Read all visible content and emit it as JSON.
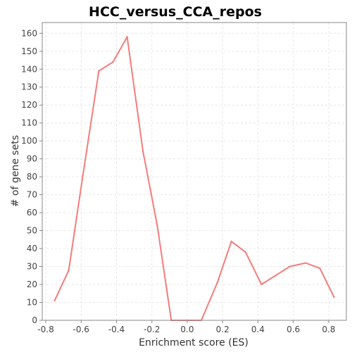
{
  "chart_data": {
    "type": "line",
    "title": "HCC_versus_CCA_repos",
    "xlabel": "Enrichment score (ES)",
    "ylabel": "# of gene sets",
    "xlim": [
      -0.82,
      0.9
    ],
    "ylim": [
      0,
      166
    ],
    "xticks": [
      -0.8,
      -0.6,
      -0.4,
      -0.2,
      0.0,
      0.2,
      0.4,
      0.6,
      0.8
    ],
    "xtick_labels": [
      "-0.8",
      "-0.6",
      "-0.4",
      "-0.2",
      "0.0",
      "0.2",
      "0.4",
      "0.6",
      "0.8"
    ],
    "yticks": [
      0,
      10,
      20,
      30,
      40,
      50,
      60,
      70,
      80,
      90,
      100,
      110,
      120,
      130,
      140,
      150,
      160
    ],
    "ytick_labels": [
      "0",
      "10",
      "20",
      "30",
      "40",
      "50",
      "60",
      "70",
      "80",
      "90",
      "100",
      "110",
      "120",
      "130",
      "140",
      "150",
      "160"
    ],
    "grid": true,
    "series": [
      {
        "color": "#f47c7c",
        "x": [
          -0.75,
          -0.67,
          -0.59,
          -0.5,
          -0.42,
          -0.34,
          -0.25,
          -0.17,
          -0.09,
          0.0,
          0.08,
          0.17,
          0.25,
          0.33,
          0.42,
          0.5,
          0.58,
          0.67,
          0.75,
          0.83
        ],
        "y": [
          11,
          28,
          81,
          139,
          144,
          158,
          94,
          53,
          0,
          0,
          0,
          21,
          44,
          38,
          20,
          25,
          30,
          32,
          29,
          13
        ]
      }
    ]
  }
}
